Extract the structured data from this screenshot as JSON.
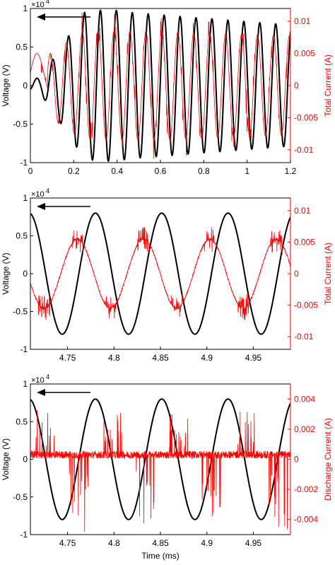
{
  "chart_data": [
    {
      "type": "line",
      "xlabel": "",
      "ylabel_left": "Voltage (V)",
      "ylabel_right": "Total Current (A)",
      "x_range": [
        0,
        1.2
      ],
      "y_left_range": [
        -1,
        1
      ],
      "y_left_exponent": "×10",
      "y_left_exponent_power": "4",
      "y_right_range": [
        -0.012,
        0.012
      ],
      "x_ticks": [
        "0",
        "0.2",
        "0.4",
        "0.6",
        "0.8",
        "1",
        "1.2"
      ],
      "y_left_ticks": [
        "-1",
        "-0.5",
        "0",
        "0.5",
        "1"
      ],
      "y_right_ticks": [
        "-0.01",
        "-0.005",
        "0",
        "0.005",
        "0.01"
      ],
      "annotation": "arrow pointing to left axis",
      "series": [
        {
          "axis": "left",
          "color": "#000000",
          "kind": "voltage",
          "frequency_per_ms": 13.6,
          "amplitude": 0.95,
          "envelope": "grows from 0 to full by 0.25 ms, reaching about -1 at 0.4 ms then steady about 0.8",
          "points_x": [
            0,
            0.05,
            0.1,
            0.15,
            0.2,
            0.25,
            0.3,
            0.35,
            0.4,
            0.5,
            0.6,
            0.8,
            1.0,
            1.2
          ],
          "points_amp": [
            0.05,
            0.1,
            0.2,
            0.5,
            0.8,
            0.95,
            0.95,
            0.95,
            1.0,
            0.9,
            0.85,
            0.8,
            0.78,
            0.78
          ]
        },
        {
          "axis": "right",
          "color": "#ff0000",
          "kind": "total current",
          "frequency_per_ms": 13.6,
          "phase_lead": 0.25,
          "amplitude": 0.0085,
          "noise": "spiky"
        }
      ]
    },
    {
      "type": "line",
      "xlabel": "",
      "ylabel_left": "Voltage (V)",
      "ylabel_right": "Total Current (A)",
      "x_range": [
        4.71,
        4.99
      ],
      "y_left_range": [
        -1,
        1
      ],
      "y_left_exponent": "×10",
      "y_left_exponent_power": "4",
      "y_right_range": [
        -0.012,
        0.012
      ],
      "x_ticks": [
        "4.75",
        "4.8",
        "4.85",
        "4.9",
        "4.95"
      ],
      "y_left_ticks": [
        "-1",
        "-0.5",
        "0",
        "0.5",
        "1"
      ],
      "y_right_ticks": [
        "-0.01",
        "-0.005",
        "0",
        "0.005",
        "0.01"
      ],
      "annotation": "arrow pointing to left axis",
      "series": [
        {
          "axis": "left",
          "color": "#000000",
          "kind": "voltage",
          "period_ms": 0.0714,
          "amplitude": 0.8,
          "peak_at": 4.78
        },
        {
          "axis": "right",
          "color": "#ff0000",
          "kind": "total current",
          "period_ms": 0.0714,
          "amplitude": 0.0055,
          "peak_at": 4.7605,
          "noise": "spiky near peaks"
        }
      ]
    },
    {
      "type": "line",
      "xlabel": "Time (ms)",
      "ylabel_left": "Voltage (V)",
      "ylabel_right": "Discharge Current (A)",
      "x_range": [
        4.71,
        4.99
      ],
      "y_left_range": [
        -1,
        1
      ],
      "y_left_exponent": "×10",
      "y_left_exponent_power": "4",
      "y_right_range": [
        -0.005,
        0.005
      ],
      "x_ticks": [
        "4.75",
        "4.8",
        "4.85",
        "4.9",
        "4.95"
      ],
      "y_left_ticks": [
        "-1",
        "-0.5",
        "0",
        "0.5",
        "1"
      ],
      "y_right_ticks": [
        "-0.004",
        "-0.002",
        "0",
        "0.002",
        "0.004"
      ],
      "annotation": "arrow pointing to left axis",
      "series": [
        {
          "axis": "left",
          "color": "#000000",
          "kind": "voltage",
          "period_ms": 0.0714,
          "amplitude": 0.8,
          "peak_at": 4.78
        },
        {
          "axis": "right",
          "color": "#ff0000",
          "kind": "discharge current",
          "baseline": 0.0003,
          "noise": "bursts of spikes up to about 0.003 and down to -0.0048 during voltage rise/fall"
        }
      ]
    }
  ]
}
